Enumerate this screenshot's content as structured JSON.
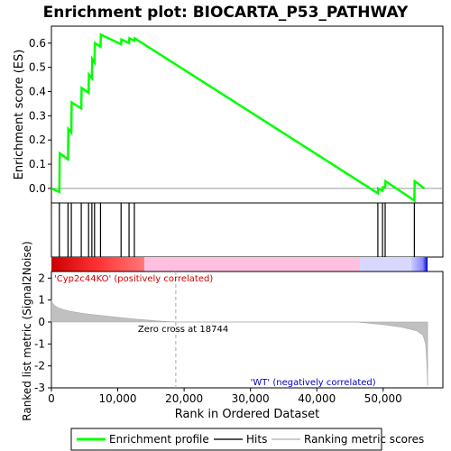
{
  "chart_data": {
    "type": "line",
    "title": "Enrichment plot: BIOCARTA_P53_PATHWAY",
    "es_panel": {
      "ylabel": "Enrichment score (ES)",
      "ylim": [
        -0.06,
        0.67
      ],
      "yticks": [
        0.0,
        0.1,
        0.2,
        0.3,
        0.4,
        0.5,
        0.6
      ],
      "ytick_labels": [
        "0.0",
        "0.1",
        "0.2",
        "0.3",
        "0.4",
        "0.5",
        "0.6"
      ],
      "series": [
        {
          "name": "Enrichment profile",
          "color": "#00ff00",
          "x": [
            0,
            1200,
            1250,
            2500,
            2550,
            3000,
            3050,
            4500,
            4550,
            5600,
            5650,
            6100,
            6150,
            6500,
            6550,
            7400,
            7450,
            10500,
            10550,
            11700,
            11750,
            12500,
            12550,
            49200,
            49250,
            49900,
            49950,
            50300,
            50350,
            54700,
            54750,
            56200
          ],
          "y": [
            0.0,
            -0.015,
            0.145,
            0.12,
            0.245,
            0.23,
            0.355,
            0.33,
            0.415,
            0.395,
            0.47,
            0.455,
            0.535,
            0.52,
            0.6,
            0.585,
            0.635,
            0.595,
            0.615,
            0.6,
            0.62,
            0.61,
            0.62,
            -0.02,
            0.0,
            -0.01,
            0.005,
            0.005,
            0.03,
            -0.05,
            0.03,
            0.0
          ]
        }
      ]
    },
    "hits": {
      "x": [
        1200,
        2500,
        3000,
        4500,
        5600,
        6100,
        6500,
        7400,
        10500,
        11700,
        12500,
        49200,
        49900,
        50300,
        54700
      ]
    },
    "rank_panel": {
      "ylabel": "Ranked list metric (Signal2Noise)",
      "ylim": [
        -3.0,
        2.3
      ],
      "yticks": [
        -3,
        -2,
        -1,
        0,
        1,
        2
      ],
      "ytick_labels": [
        "-3",
        "-2",
        "-1",
        "0",
        "1",
        "2"
      ],
      "xlabel": "Rank in Ordered Dataset",
      "xlim": [
        0,
        59000
      ],
      "xticks": [
        0,
        10000,
        20000,
        30000,
        40000,
        50000
      ],
      "xtick_labels": [
        "0",
        "10,000",
        "20,000",
        "30,000",
        "40,000",
        "50,000"
      ],
      "zero_cross": 18744,
      "zero_cross_label": "Zero cross at 18744",
      "pos_label": "'Cyp2c44KO' (positively correlated)",
      "neg_label": "'WT' (negatively correlated)",
      "metric_x": [
        0,
        200,
        500,
        1000,
        2000,
        3000,
        5000,
        8000,
        12000,
        16000,
        18744,
        46000,
        50000,
        53000,
        55000,
        56000,
        56400,
        56600,
        56700
      ],
      "metric_y": [
        1.0,
        0.85,
        0.75,
        0.65,
        0.55,
        0.48,
        0.38,
        0.28,
        0.15,
        0.05,
        0.0,
        0.0,
        -0.12,
        -0.25,
        -0.4,
        -0.6,
        -1.0,
        -2.0,
        -2.9
      ]
    },
    "legend": {
      "items": [
        {
          "label": "Enrichment profile",
          "color": "#00ff00"
        },
        {
          "label": "Hits",
          "color": "#555555"
        },
        {
          "label": "Ranking metric scores",
          "color": "#cccccc"
        }
      ]
    }
  }
}
